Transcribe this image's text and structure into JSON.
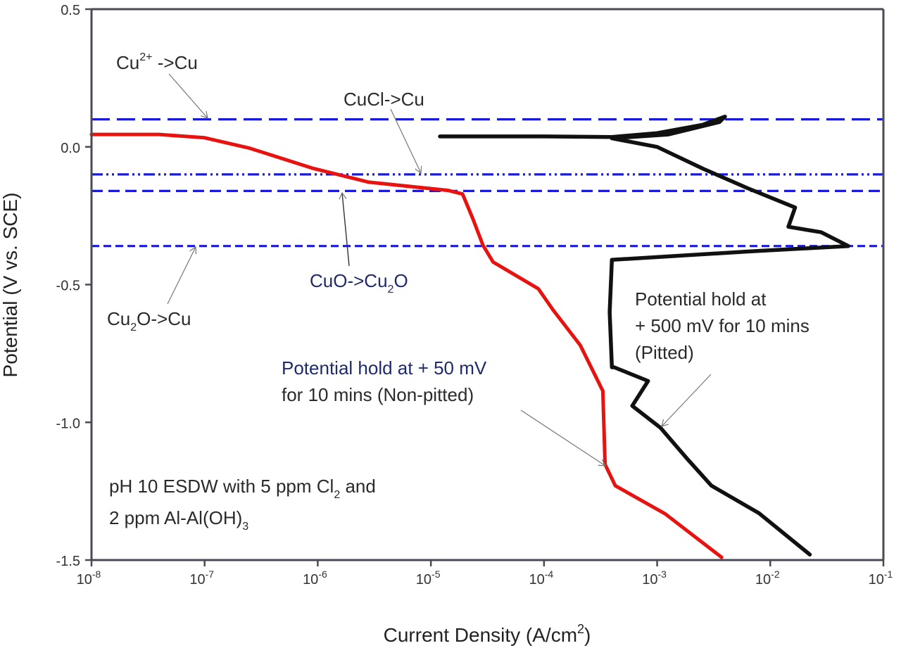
{
  "chart_data": {
    "type": "line",
    "title": "",
    "xlabel": "Current Density (A/cm2)",
    "ylabel": "Potential (V vs. SCE)",
    "xscale": "log",
    "xlim": [
      1e-08,
      0.1
    ],
    "ylim": [
      -1.5,
      0.5
    ],
    "x_ticks": [
      "10-8",
      "10-7",
      "10-6",
      "10-5",
      "10-4",
      "10-3",
      "10-2",
      "10-1"
    ],
    "y_ticks": [
      "0.5",
      "0.0",
      "-0.5",
      "-1.0",
      "-1.5"
    ],
    "grid": false,
    "series": [
      {
        "name": "Potential hold at + 50 mV for 10 mins (Non-pitted)",
        "color": "#e8120f",
        "log10_x": [
          -8.0,
          -7.4,
          -7.0,
          -6.6,
          -6.05,
          -5.55,
          -4.85,
          -4.72,
          -4.63,
          -4.54,
          -4.45,
          -4.05,
          -3.92,
          -3.68,
          -3.48,
          -3.46,
          -3.37,
          -2.93,
          -2.43
        ],
        "y": [
          0.045,
          0.045,
          0.033,
          -0.005,
          -0.077,
          -0.128,
          -0.158,
          -0.171,
          -0.26,
          -0.357,
          -0.418,
          -0.515,
          -0.592,
          -0.72,
          -0.886,
          -1.153,
          -1.23,
          -1.332,
          -1.49
        ]
      },
      {
        "name": "Potential hold at + 500 mV for 10 mins (Pitted)",
        "color": "#111111",
        "log10_x": [
          -4.92,
          -4.0,
          -3.4,
          -3.0,
          -2.6,
          -2.4,
          -2.45,
          -2.9,
          -3.4,
          -3.0,
          -2.59,
          -2.2,
          -1.78,
          -1.84,
          -1.55,
          -1.31,
          -2.2,
          -3.4,
          -3.42,
          -3.4,
          -3.38,
          -3.08,
          -3.22,
          -2.97,
          -2.74,
          -2.52,
          -2.1,
          -1.65
        ],
        "y": [
          0.038,
          0.038,
          0.036,
          0.05,
          0.08,
          0.11,
          0.09,
          0.045,
          0.031,
          0.0,
          -0.08,
          -0.15,
          -0.22,
          -0.29,
          -0.31,
          -0.36,
          -0.38,
          -0.41,
          -0.6,
          -0.8,
          -0.8,
          -0.85,
          -0.94,
          -1.02,
          -1.13,
          -1.23,
          -1.33,
          -1.48
        ]
      }
    ],
    "reference_lines": [
      {
        "label": "Cu2+->Cu",
        "y": 0.1,
        "style": "long-dash",
        "color": "#1a1adb"
      },
      {
        "label": "CuCl->Cu",
        "y": -0.1,
        "style": "dash-dot-dot",
        "color": "#1a1adb"
      },
      {
        "label": "CuO->Cu2O",
        "y": -0.16,
        "style": "dash",
        "color": "#1a1adb"
      },
      {
        "label": "Cu2O->Cu",
        "y": -0.36,
        "style": "short-dash",
        "color": "#1a1adb"
      }
    ],
    "annotations": [
      {
        "text_main": "Cu",
        "text_sup": "2+",
        "text_rest": " ->Cu"
      },
      {
        "text": "CuCl->Cu"
      },
      {
        "text_main": "CuO->Cu",
        "text_sub": "2",
        "text_rest": "O"
      },
      {
        "text_main": "Cu",
        "text_sub": "2",
        "text_rest": "O->Cu"
      },
      {
        "line1": "Potential hold at + 50 mV",
        "line2": "for 10 mins (Non-pitted)"
      },
      {
        "line1": "Potential hold at",
        "line2": "+ 500 mV for 10 mins",
        "line3": "(Pitted)"
      },
      {
        "line1_main": "pH 10 ESDW with 5 ppm Cl",
        "line1_sub": "2",
        "line1_rest": " and",
        "line2_main": "2 ppm Al-Al(OH)",
        "line2_sub": "3"
      }
    ]
  },
  "labels": {
    "xlabel_main": "Current Density (A/cm",
    "xlabel_sup": "2",
    "xlabel_end": ")",
    "ylabel": "Potential (V vs. SCE)",
    "x_tick_base": "10",
    "x_tick_exps": [
      "-8",
      "-7",
      "-6",
      "-5",
      "-4",
      "-3",
      "-2",
      "-1"
    ],
    "y_ticks": [
      "0.5",
      "0.0",
      "-0.5",
      "-1.0",
      "-1.5"
    ],
    "cu2_main": "Cu",
    "cu2_sup": "2+",
    "cu2_rest": " ->Cu",
    "cucl": "CuCl->Cu",
    "cuo_main": "CuO->Cu",
    "cuo_sub": "2",
    "cuo_rest": "O",
    "cu2o_main": "Cu",
    "cu2o_sub": "2",
    "cu2o_rest": "O->Cu",
    "red_l1": "Potential hold at + 50 mV",
    "red_l2": "for 10 mins (Non-pitted)",
    "black_l1": "Potential hold at",
    "black_l2": "+ 500 mV for 10 mins",
    "black_l3": "(Pitted)",
    "cond_l1_main": "pH 10 ESDW with 5 ppm Cl",
    "cond_l1_sub": "2",
    "cond_l1_rest": " and",
    "cond_l2_main": "2 ppm Al-Al(OH)",
    "cond_l2_sub": "3"
  }
}
